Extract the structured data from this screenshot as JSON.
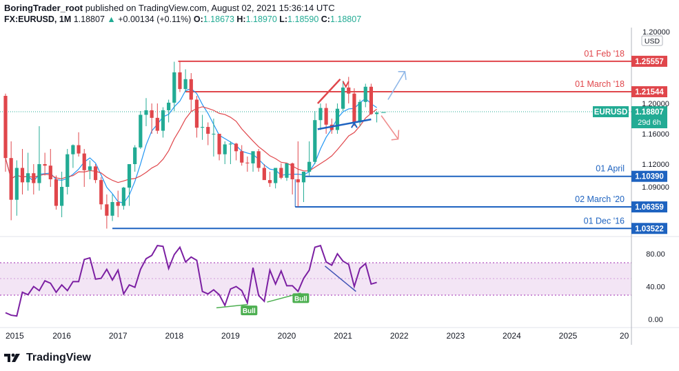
{
  "header": {
    "publisher": "BoringTrader_root",
    "published_text": "published on TradingView.com, August 02, 2021 15:36:14 UTC",
    "symbol": "FX:EURUSD, 1M",
    "last": "1.18807",
    "change": "+0.00134 (+0.11%)",
    "o_label": "O:",
    "o_val": "1.18673",
    "h_label": "H:",
    "h_val": "1.18970",
    "l_label": "L:",
    "l_val": "1.18590",
    "c_label": "C:",
    "c_val": "1.18807"
  },
  "footer": {
    "brand": "TradingView"
  },
  "chart_data": {
    "type": "candlestick",
    "title": "FX:EURUSD, 1M",
    "currency_label": "USD",
    "price_axis_ticks": [
      "1.20000",
      "1.16000",
      "1.12000",
      "1.09000"
    ],
    "rsi_axis_ticks": [
      "80.00",
      "40.00",
      "0.00"
    ],
    "time_axis_ticks": [
      "2015",
      "2016",
      "2017",
      "2018",
      "2019",
      "2020",
      "2021",
      "2022",
      "2023",
      "2024",
      "2025",
      "20"
    ],
    "last_price": {
      "label": "EURUSD",
      "value": "1.18807",
      "countdown": "29d 6h"
    },
    "levels": [
      {
        "label": "01 Feb '18",
        "price": "1.25557",
        "color": "#e0464b"
      },
      {
        "label": "01 March '18",
        "price": "1.21544",
        "color": "#e0464b"
      },
      {
        "label": "01 April",
        "price": "1.10390",
        "color": "#1e63c0"
      },
      {
        "label": "02 March '20",
        "price": "1.06359",
        "color": "#1e63c0"
      },
      {
        "label": "01 Dec '16",
        "price": "1.03522",
        "color": "#1e63c0"
      }
    ],
    "rsi_badges": [
      "Bull",
      "Bull"
    ],
    "candles_monthly": [
      {
        "year": 2015.0,
        "o": 1.21,
        "h": 1.213,
        "l": 1.11,
        "c": 1.128
      },
      {
        "year": 2015.1,
        "o": 1.128,
        "h": 1.15,
        "l": 1.046,
        "c": 1.073
      },
      {
        "year": 2015.2,
        "o": 1.073,
        "h": 1.125,
        "l": 1.052,
        "c": 1.115
      },
      {
        "year": 2015.3,
        "o": 1.115,
        "h": 1.14,
        "l": 1.08,
        "c": 1.096
      },
      {
        "year": 2015.4,
        "o": 1.096,
        "h": 1.135,
        "l": 1.085,
        "c": 1.108
      },
      {
        "year": 2015.5,
        "o": 1.108,
        "h": 1.12,
        "l": 1.08,
        "c": 1.095
      },
      {
        "year": 2015.6,
        "o": 1.095,
        "h": 1.17,
        "l": 1.085,
        "c": 1.12
      },
      {
        "year": 2015.7,
        "o": 1.12,
        "h": 1.135,
        "l": 1.105,
        "c": 1.118
      },
      {
        "year": 2015.8,
        "o": 1.118,
        "h": 1.14,
        "l": 1.09,
        "c": 1.1
      },
      {
        "year": 2015.9,
        "o": 1.1,
        "h": 1.105,
        "l": 1.06,
        "c": 1.065
      },
      {
        "year": 2016.0,
        "o": 1.065,
        "h": 1.11,
        "l": 1.05,
        "c": 1.09
      },
      {
        "year": 2016.1,
        "o": 1.09,
        "h": 1.14,
        "l": 1.08,
        "c": 1.133
      },
      {
        "year": 2016.2,
        "o": 1.133,
        "h": 1.146,
        "l": 1.115,
        "c": 1.145
      },
      {
        "year": 2016.3,
        "o": 1.145,
        "h": 1.162,
        "l": 1.13,
        "c": 1.134
      },
      {
        "year": 2016.4,
        "o": 1.134,
        "h": 1.14,
        "l": 1.09,
        "c": 1.112
      },
      {
        "year": 2016.5,
        "o": 1.112,
        "h": 1.125,
        "l": 1.1,
        "c": 1.117
      },
      {
        "year": 2016.6,
        "o": 1.117,
        "h": 1.12,
        "l": 1.095,
        "c": 1.099
      },
      {
        "year": 2016.7,
        "o": 1.099,
        "h": 1.103,
        "l": 1.06,
        "c": 1.067
      },
      {
        "year": 2016.8,
        "o": 1.067,
        "h": 1.08,
        "l": 1.035,
        "c": 1.052
      },
      {
        "year": 2016.9,
        "o": 1.052,
        "h": 1.08,
        "l": 1.045,
        "c": 1.07
      },
      {
        "year": 2017.0,
        "o": 1.07,
        "h": 1.085,
        "l": 1.05,
        "c": 1.065
      },
      {
        "year": 2017.1,
        "o": 1.065,
        "h": 1.09,
        "l": 1.06,
        "c": 1.089
      },
      {
        "year": 2017.2,
        "o": 1.089,
        "h": 1.12,
        "l": 1.065,
        "c": 1.12
      },
      {
        "year": 2017.3,
        "o": 1.12,
        "h": 1.145,
        "l": 1.11,
        "c": 1.142
      },
      {
        "year": 2017.4,
        "o": 1.142,
        "h": 1.19,
        "l": 1.14,
        "c": 1.185
      },
      {
        "year": 2017.5,
        "o": 1.185,
        "h": 1.207,
        "l": 1.17,
        "c": 1.191
      },
      {
        "year": 2017.6,
        "o": 1.191,
        "h": 1.2,
        "l": 1.16,
        "c": 1.181
      },
      {
        "year": 2017.7,
        "o": 1.181,
        "h": 1.2,
        "l": 1.16,
        "c": 1.164
      },
      {
        "year": 2017.8,
        "o": 1.164,
        "h": 1.195,
        "l": 1.155,
        "c": 1.191
      },
      {
        "year": 2017.9,
        "o": 1.191,
        "h": 1.205,
        "l": 1.175,
        "c": 1.201
      },
      {
        "year": 2018.0,
        "o": 1.201,
        "h": 1.255,
        "l": 1.19,
        "c": 1.241
      },
      {
        "year": 2018.1,
        "o": 1.241,
        "h": 1.256,
        "l": 1.215,
        "c": 1.219
      },
      {
        "year": 2018.2,
        "o": 1.219,
        "h": 1.245,
        "l": 1.215,
        "c": 1.232
      },
      {
        "year": 2018.3,
        "o": 1.232,
        "h": 1.24,
        "l": 1.19,
        "c": 1.205
      },
      {
        "year": 2018.4,
        "o": 1.205,
        "h": 1.21,
        "l": 1.155,
        "c": 1.168
      },
      {
        "year": 2018.5,
        "o": 1.168,
        "h": 1.185,
        "l": 1.152,
        "c": 1.169
      },
      {
        "year": 2018.6,
        "o": 1.169,
        "h": 1.175,
        "l": 1.145,
        "c": 1.16
      },
      {
        "year": 2018.7,
        "o": 1.16,
        "h": 1.18,
        "l": 1.13,
        "c": 1.16
      },
      {
        "year": 2018.8,
        "o": 1.16,
        "h": 1.16,
        "l": 1.125,
        "c": 1.133
      },
      {
        "year": 2018.9,
        "o": 1.133,
        "h": 1.15,
        "l": 1.12,
        "c": 1.146
      },
      {
        "year": 2019.0,
        "o": 1.146,
        "h": 1.15,
        "l": 1.12,
        "c": 1.147
      },
      {
        "year": 2019.1,
        "o": 1.147,
        "h": 1.148,
        "l": 1.125,
        "c": 1.137
      },
      {
        "year": 2019.2,
        "o": 1.137,
        "h": 1.145,
        "l": 1.118,
        "c": 1.122
      },
      {
        "year": 2019.3,
        "o": 1.122,
        "h": 1.13,
        "l": 1.11,
        "c": 1.121
      },
      {
        "year": 2019.4,
        "o": 1.121,
        "h": 1.135,
        "l": 1.11,
        "c": 1.137
      },
      {
        "year": 2019.5,
        "o": 1.137,
        "h": 1.14,
        "l": 1.11,
        "c": 1.115
      },
      {
        "year": 2019.6,
        "o": 1.115,
        "h": 1.12,
        "l": 1.1,
        "c": 1.099
      },
      {
        "year": 2019.7,
        "o": 1.099,
        "h": 1.11,
        "l": 1.09,
        "c": 1.095
      },
      {
        "year": 2019.8,
        "o": 1.095,
        "h": 1.115,
        "l": 1.088,
        "c": 1.115
      },
      {
        "year": 2019.9,
        "o": 1.115,
        "h": 1.121,
        "l": 1.1,
        "c": 1.102
      },
      {
        "year": 2020.0,
        "o": 1.102,
        "h": 1.12,
        "l": 1.098,
        "c": 1.121
      },
      {
        "year": 2020.1,
        "o": 1.121,
        "h": 1.122,
        "l": 1.08,
        "c": 1.1
      },
      {
        "year": 2020.2,
        "o": 1.1,
        "h": 1.15,
        "l": 1.064,
        "c": 1.096
      },
      {
        "year": 2020.3,
        "o": 1.096,
        "h": 1.11,
        "l": 1.07,
        "c": 1.11
      },
      {
        "year": 2020.4,
        "o": 1.11,
        "h": 1.15,
        "l": 1.105,
        "c": 1.123
      },
      {
        "year": 2020.5,
        "o": 1.123,
        "h": 1.19,
        "l": 1.12,
        "c": 1.178
      },
      {
        "year": 2020.6,
        "o": 1.178,
        "h": 1.2,
        "l": 1.165,
        "c": 1.194
      },
      {
        "year": 2020.7,
        "o": 1.194,
        "h": 1.2,
        "l": 1.16,
        "c": 1.172
      },
      {
        "year": 2020.8,
        "o": 1.172,
        "h": 1.18,
        "l": 1.16,
        "c": 1.165
      },
      {
        "year": 2020.9,
        "o": 1.165,
        "h": 1.2,
        "l": 1.16,
        "c": 1.193
      },
      {
        "year": 2021.0,
        "o": 1.193,
        "h": 1.23,
        "l": 1.19,
        "c": 1.221
      },
      {
        "year": 2021.1,
        "o": 1.221,
        "h": 1.235,
        "l": 1.2,
        "c": 1.213
      },
      {
        "year": 2021.2,
        "o": 1.213,
        "h": 1.22,
        "l": 1.17,
        "c": 1.175
      },
      {
        "year": 2021.3,
        "o": 1.175,
        "h": 1.205,
        "l": 1.17,
        "c": 1.202
      },
      {
        "year": 2021.4,
        "o": 1.202,
        "h": 1.226,
        "l": 1.195,
        "c": 1.222
      },
      {
        "year": 2021.5,
        "o": 1.222,
        "h": 1.226,
        "l": 1.185,
        "c": 1.186
      },
      {
        "year": 2021.6,
        "o": 1.186,
        "h": 1.19,
        "l": 1.175,
        "c": 1.188
      }
    ],
    "rsi_values": [
      {
        "year": 2015.0,
        "v": 8
      },
      {
        "year": 2015.1,
        "v": 5
      },
      {
        "year": 2015.2,
        "v": 4
      },
      {
        "year": 2015.3,
        "v": 33
      },
      {
        "year": 2015.4,
        "v": 30
      },
      {
        "year": 2015.5,
        "v": 40
      },
      {
        "year": 2015.6,
        "v": 35
      },
      {
        "year": 2015.7,
        "v": 47
      },
      {
        "year": 2015.8,
        "v": 44
      },
      {
        "year": 2015.9,
        "v": 33
      },
      {
        "year": 2016.0,
        "v": 42
      },
      {
        "year": 2016.1,
        "v": 35
      },
      {
        "year": 2016.2,
        "v": 46
      },
      {
        "year": 2016.3,
        "v": 46
      },
      {
        "year": 2016.4,
        "v": 73
      },
      {
        "year": 2016.5,
        "v": 75
      },
      {
        "year": 2016.6,
        "v": 49
      },
      {
        "year": 2016.7,
        "v": 50
      },
      {
        "year": 2016.8,
        "v": 61
      },
      {
        "year": 2016.9,
        "v": 48
      },
      {
        "year": 2017.0,
        "v": 60
      },
      {
        "year": 2017.1,
        "v": 31
      },
      {
        "year": 2017.2,
        "v": 42
      },
      {
        "year": 2017.3,
        "v": 39
      },
      {
        "year": 2017.4,
        "v": 61
      },
      {
        "year": 2017.5,
        "v": 74
      },
      {
        "year": 2017.6,
        "v": 78
      },
      {
        "year": 2017.7,
        "v": 90
      },
      {
        "year": 2017.8,
        "v": 89
      },
      {
        "year": 2017.9,
        "v": 62
      },
      {
        "year": 2018.0,
        "v": 79
      },
      {
        "year": 2018.1,
        "v": 88
      },
      {
        "year": 2018.2,
        "v": 70
      },
      {
        "year": 2018.3,
        "v": 76
      },
      {
        "year": 2018.4,
        "v": 72
      },
      {
        "year": 2018.5,
        "v": 34
      },
      {
        "year": 2018.6,
        "v": 31
      },
      {
        "year": 2018.7,
        "v": 36
      },
      {
        "year": 2018.8,
        "v": 30
      },
      {
        "year": 2018.9,
        "v": 17
      },
      {
        "year": 2019.0,
        "v": 37
      },
      {
        "year": 2019.1,
        "v": 40
      },
      {
        "year": 2019.2,
        "v": 35
      },
      {
        "year": 2019.3,
        "v": 20
      },
      {
        "year": 2019.4,
        "v": 63
      },
      {
        "year": 2019.5,
        "v": 29
      },
      {
        "year": 2019.6,
        "v": 22
      },
      {
        "year": 2019.7,
        "v": 60
      },
      {
        "year": 2019.8,
        "v": 43
      },
      {
        "year": 2019.9,
        "v": 59
      },
      {
        "year": 2020.0,
        "v": 41
      },
      {
        "year": 2020.1,
        "v": 41
      },
      {
        "year": 2020.2,
        "v": 34
      },
      {
        "year": 2020.3,
        "v": 50
      },
      {
        "year": 2020.4,
        "v": 60
      },
      {
        "year": 2020.5,
        "v": 88
      },
      {
        "year": 2020.6,
        "v": 90
      },
      {
        "year": 2020.7,
        "v": 70
      },
      {
        "year": 2020.8,
        "v": 66
      },
      {
        "year": 2020.9,
        "v": 80
      },
      {
        "year": 2021.0,
        "v": 71
      },
      {
        "year": 2021.1,
        "v": 67
      },
      {
        "year": 2021.2,
        "v": 40
      },
      {
        "year": 2021.3,
        "v": 62
      },
      {
        "year": 2021.4,
        "v": 68
      },
      {
        "year": 2021.5,
        "v": 43
      },
      {
        "year": 2021.6,
        "v": 45
      }
    ]
  },
  "colors": {
    "bull": "#22ab94",
    "bear": "#e0464b",
    "rsi": "#7b1fa2",
    "ma_fast": "#2196f3",
    "ma_slow": "#e0464b",
    "support": "#1e63c0",
    "resistance": "#e0464b",
    "text": "#131722"
  }
}
